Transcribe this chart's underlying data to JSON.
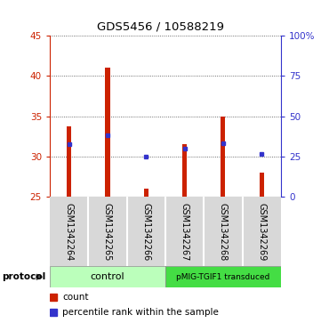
{
  "title": "GDS5456 / 10588219",
  "samples": [
    "GSM1342264",
    "GSM1342265",
    "GSM1342266",
    "GSM1342267",
    "GSM1342268",
    "GSM1342269"
  ],
  "bar_bottom": 25,
  "bar_tops": [
    33.7,
    41.0,
    26.0,
    31.5,
    35.0,
    28.0
  ],
  "percentile_values": [
    31.5,
    32.7,
    30.0,
    31.0,
    31.7,
    30.3
  ],
  "ylim_left": [
    25,
    45
  ],
  "ylim_right": [
    0,
    100
  ],
  "yticks_left": [
    25,
    30,
    35,
    40,
    45
  ],
  "yticks_right": [
    0,
    25,
    50,
    75,
    100
  ],
  "ytick_labels_right": [
    "0",
    "25",
    "50",
    "75",
    "100%"
  ],
  "ytick_labels_left": [
    "25",
    "30",
    "35",
    "40",
    "45"
  ],
  "bar_color": "#cc2200",
  "blue_color": "#3333cc",
  "bg_protocol_control": "#bbffbb",
  "bg_protocol_pmig": "#44dd44",
  "protocol_label_control": "control",
  "protocol_label_pmig": "pMIG-TGIF1 transduced",
  "legend_count": "count",
  "legend_percentile": "percentile rank within the sample",
  "bar_width": 0.12
}
